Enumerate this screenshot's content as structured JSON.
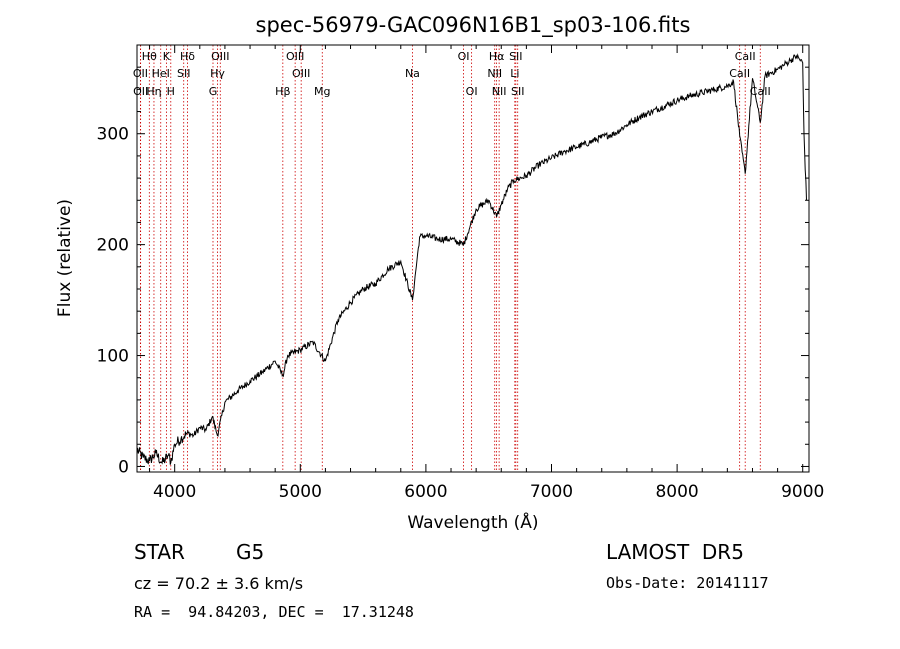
{
  "chart_data": {
    "type": "line",
    "title": "spec-56979-GAC096N16B1_sp03-106.fits",
    "xlabel": "Wavelength (Å)",
    "ylabel": "Flux (relative)",
    "xlim": [
      3700,
      9050
    ],
    "ylim": [
      -5,
      380
    ],
    "xticks": [
      4000,
      5000,
      6000,
      7000,
      8000,
      9000
    ],
    "yticks": [
      0,
      100,
      200,
      300
    ],
    "grid": false,
    "line_color": "#000000",
    "marker_color": "#cc0000",
    "series": [
      {
        "x": [
          3700,
          3750,
          3800,
          3850,
          3900,
          3950,
          3970,
          4000,
          4050,
          4100,
          4150,
          4200,
          4250,
          4300,
          4340,
          4400,
          4500,
          4600,
          4700,
          4800,
          4861,
          4900,
          5000,
          5100,
          5200,
          5300,
          5400,
          5500,
          5600,
          5700,
          5800,
          5893,
          5950,
          6000,
          6100,
          6200,
          6300,
          6400,
          6500,
          6563,
          6600,
          6650,
          6700,
          6800,
          6900,
          7000,
          7100,
          7200,
          7300,
          7400,
          7500,
          7600,
          7700,
          7800,
          7900,
          8000,
          8100,
          8200,
          8300,
          8400,
          8450,
          8498,
          8542,
          8600,
          8662,
          8700,
          8800,
          8850,
          8900,
          8950,
          9000,
          9010,
          9030
        ],
        "y": [
          15,
          8,
          5,
          12,
          3,
          10,
          4,
          20,
          25,
          30,
          28,
          35,
          33,
          45,
          28,
          58,
          68,
          77,
          85,
          95,
          82,
          100,
          105,
          112,
          95,
          132,
          148,
          160,
          165,
          178,
          185,
          150,
          207,
          208,
          205,
          205,
          200,
          232,
          240,
          225,
          236,
          250,
          258,
          262,
          272,
          278,
          284,
          288,
          292,
          297,
          300,
          308,
          315,
          320,
          325,
          330,
          334,
          337,
          340,
          343,
          347,
          298,
          264,
          350,
          310,
          352,
          358,
          362,
          366,
          370,
          364,
          300,
          240
        ]
      }
    ],
    "spectral_lines": [
      {
        "label": "Hθ",
        "wavelength": 3798,
        "row": 1
      },
      {
        "label": "OII",
        "wavelength": 3727,
        "row": 2
      },
      {
        "label": "OII",
        "wavelength": 3729,
        "row": 3
      },
      {
        "label": "Hη",
        "wavelength": 3835,
        "row": 3
      },
      {
        "label": "HeI",
        "wavelength": 3889,
        "row": 2
      },
      {
        "label": "K",
        "wavelength": 3934,
        "row": 1
      },
      {
        "label": "H",
        "wavelength": 3969,
        "row": 3
      },
      {
        "label": "Hδ",
        "wavelength": 4102,
        "row": 1
      },
      {
        "label": "SII",
        "wavelength": 4072,
        "row": 2
      },
      {
        "label": "OIII",
        "wavelength": 4363,
        "row": 1
      },
      {
        "label": "Hγ",
        "wavelength": 4341,
        "row": 2
      },
      {
        "label": "G",
        "wavelength": 4305,
        "row": 3
      },
      {
        "label": "OIII",
        "wavelength": 4959,
        "row": 1
      },
      {
        "label": "OIII",
        "wavelength": 5007,
        "row": 2
      },
      {
        "label": "Hβ",
        "wavelength": 4861,
        "row": 3
      },
      {
        "label": "Mg",
        "wavelength": 5175,
        "row": 3
      },
      {
        "label": "Na",
        "wavelength": 5893,
        "row": 2
      },
      {
        "label": "OI",
        "wavelength": 6300,
        "row": 1
      },
      {
        "label": "OI",
        "wavelength": 6364,
        "row": 3
      },
      {
        "label": "Hα",
        "wavelength": 6563,
        "row": 1
      },
      {
        "label": "NII",
        "wavelength": 6548,
        "row": 2
      },
      {
        "label": "NII",
        "wavelength": 6583,
        "row": 3
      },
      {
        "label": "SII",
        "wavelength": 6716,
        "row": 1
      },
      {
        "label": "Li",
        "wavelength": 6708,
        "row": 2
      },
      {
        "label": "SII",
        "wavelength": 6731,
        "row": 3
      },
      {
        "label": "CaII",
        "wavelength": 8542,
        "row": 1
      },
      {
        "label": "CaII",
        "wavelength": 8498,
        "row": 2
      },
      {
        "label": "CaII",
        "wavelength": 8662,
        "row": 3
      }
    ]
  },
  "info": {
    "object_class": "STAR",
    "subclass": "G5",
    "survey": "LAMOST  DR5",
    "redshift": "cz = 70.2 ± 3.6 km/s",
    "obs_date": "Obs-Date: 20141117",
    "coords": "RA =  94.84203, DEC =  17.31248"
  }
}
